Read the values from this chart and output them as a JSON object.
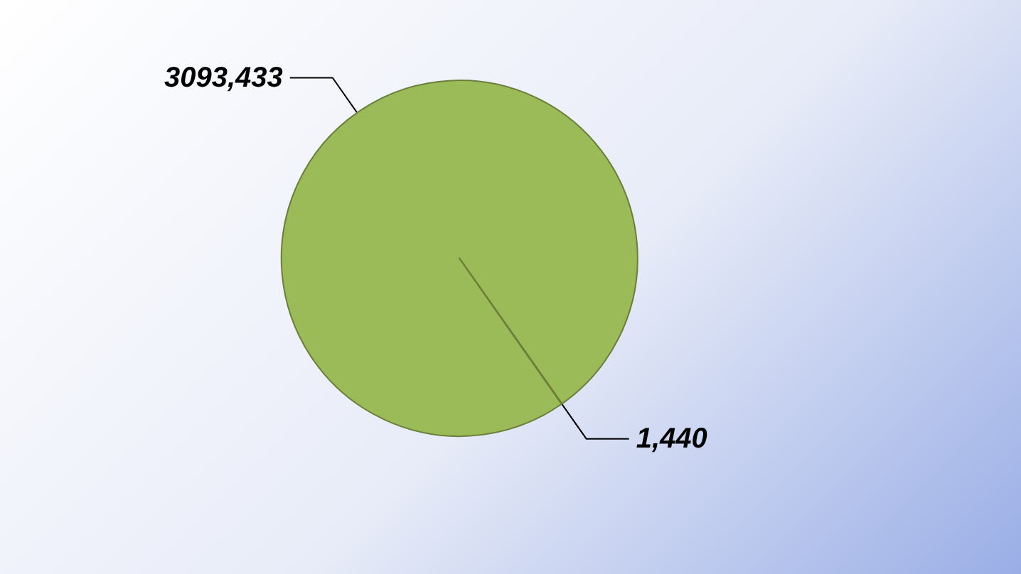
{
  "chart_data": {
    "type": "pie",
    "categories": [
      null,
      null
    ],
    "values": [
      3093433,
      1440
    ],
    "colors": [
      "#9bbb59",
      "#1f3b5c"
    ],
    "value_labels": [
      "3093,433",
      "1,440"
    ]
  }
}
